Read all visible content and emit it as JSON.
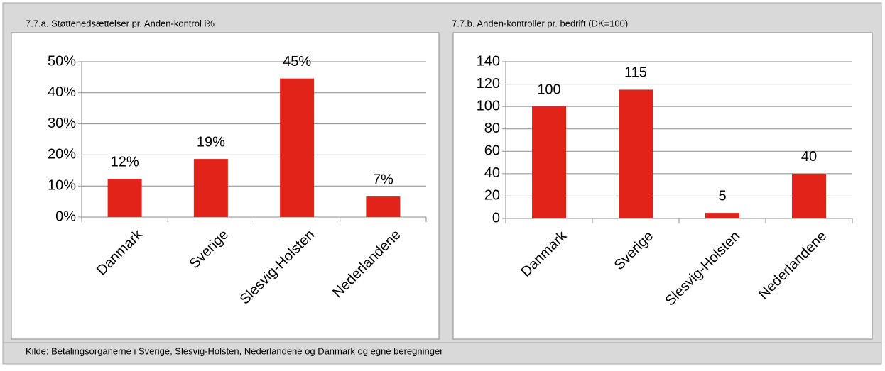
{
  "chart_data": [
    {
      "type": "bar",
      "title": "7.7.a. Støttenedsættelser pr. Anden-kontrol i%",
      "categories": [
        "Danmark",
        "Sverige",
        "Slesvig-Holsten",
        "Nederlandene"
      ],
      "values": [
        12.3,
        18.7,
        44.6,
        6.6
      ],
      "value_labels": [
        "12%",
        "19%",
        "45%",
        "7%"
      ],
      "color": "#e2231a",
      "ylim": [
        0,
        50
      ],
      "yticks": [
        {
          "value": 0,
          "label": "0%"
        },
        {
          "value": 10,
          "label": "10%"
        },
        {
          "value": 20,
          "label": "20%"
        },
        {
          "value": 30,
          "label": "30%"
        },
        {
          "value": 40,
          "label": "40%"
        },
        {
          "value": 50,
          "label": "50%"
        }
      ],
      "grid": true
    },
    {
      "type": "bar",
      "title": "7.7.b. Anden-kontroller pr. bedrift (DK=100)",
      "categories": [
        "Danmark",
        "Sverige",
        "Slesvig-Holsten",
        "Nederlandene"
      ],
      "values": [
        100,
        115,
        5,
        40
      ],
      "color": "#e2231a",
      "ylim": [
        0,
        140
      ],
      "yticks": [
        0,
        20,
        40,
        60,
        80,
        100,
        120,
        140
      ],
      "grid": true
    }
  ],
  "source": "Kilde: Betalingsorganerne i Sverige, Slesvig-Holsten, Nederlandene og Danmark og egne beregninger"
}
